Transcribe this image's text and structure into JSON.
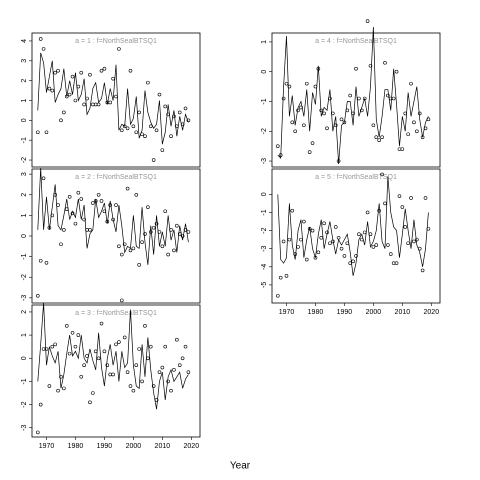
{
  "xlabel": "Year",
  "chart_data": [
    {
      "type": "line",
      "title": "a = 1 : f=NorthSealBTSQ1",
      "xlim": [
        1965,
        2023
      ],
      "ylim": [
        -2.35,
        4.4
      ],
      "yticks": [
        -2,
        -1,
        0,
        1,
        2,
        3,
        4
      ],
      "x": [
        1967,
        1968,
        1969,
        1970,
        1971,
        1972,
        1973,
        1974,
        1975,
        1976,
        1977,
        1978,
        1979,
        1980,
        1981,
        1982,
        1983,
        1984,
        1985,
        1986,
        1987,
        1988,
        1989,
        1990,
        1991,
        1992,
        1993,
        1994,
        1995,
        1996,
        1997,
        1998,
        1999,
        2000,
        2001,
        2002,
        2003,
        2004,
        2005,
        2006,
        2007,
        2008,
        2009,
        2010,
        2011,
        2012,
        2013,
        2014,
        2015,
        2016,
        2017,
        2018,
        2019
      ],
      "series": [
        {
          "style": "line",
          "color": "#000",
          "values": [
            0.5,
            3.4,
            2.9,
            1.4,
            2.2,
            3.0,
            0.9,
            1.3,
            1.6,
            2.6,
            1.2,
            2.0,
            1.3,
            2.4,
            1.0,
            1.3,
            2.1,
            0.3,
            0.6,
            1.6,
            1.9,
            0.9,
            1.1,
            1.9,
            0.8,
            1.6,
            1.0,
            2.8,
            -0.5,
            -0.2,
            -0.3,
            1.6,
            -0.2,
            0.1,
            1.2,
            -0.9,
            -0.5,
            1.5,
            0.4,
            -0.1,
            -0.4,
            -0.2,
            1.0,
            -1.2,
            -0.6,
            0.8,
            -0.3,
            0.5,
            -0.8,
            0.2,
            -0.5,
            0.3,
            -0.1
          ]
        },
        {
          "style": "points",
          "color": "#000",
          "values": [
            -0.6,
            4.1,
            3.6,
            -0.6,
            1.6,
            1.5,
            2.4,
            2.5,
            0.0,
            0.4,
            1.2,
            1.3,
            2.2,
            1.0,
            1.7,
            2.4,
            0.8,
            1.1,
            2.3,
            0.8,
            0.8,
            0.8,
            2.5,
            2.6,
            0.9,
            0.9,
            2.1,
            1.2,
            3.6,
            -0.5,
            -0.3,
            -0.4,
            2.5,
            -0.3,
            -0.6,
            0.4,
            -0.7,
            -0.8,
            1.9,
            -0.3,
            -2.0,
            -0.5,
            1.3,
            -1.5,
            0.7,
            0.3,
            -0.8,
            0.2,
            -0.3,
            0.4,
            -0.2,
            0.6,
            0.0
          ]
        }
      ]
    },
    {
      "type": "line",
      "title": "a = 2 : f=NorthSealBTSQ1",
      "xlim": [
        1965,
        2023
      ],
      "ylim": [
        -3.25,
        3.25
      ],
      "yticks": [
        -3,
        -2,
        -1,
        0,
        1,
        2,
        3
      ],
      "x": [
        1967,
        1968,
        1969,
        1970,
        1971,
        1972,
        1973,
        1974,
        1975,
        1976,
        1977,
        1978,
        1979,
        1980,
        1981,
        1982,
        1983,
        1984,
        1985,
        1986,
        1987,
        1988,
        1989,
        1990,
        1991,
        1992,
        1993,
        1994,
        1995,
        1996,
        1997,
        1998,
        1999,
        2000,
        2001,
        2002,
        2003,
        2004,
        2005,
        2006,
        2007,
        2008,
        2009,
        2010,
        2011,
        2012,
        2013,
        2014,
        2015,
        2016,
        2017,
        2018,
        2019
      ],
      "series": [
        {
          "style": "line",
          "color": "#000",
          "values": [
            0.3,
            3.3,
            0.3,
            1.9,
            0.3,
            1.4,
            2.5,
            0.5,
            0.3,
            1.0,
            1.8,
            0.8,
            1.2,
            0.9,
            1.8,
            0.8,
            1.5,
            -0.6,
            0.1,
            0.3,
            1.8,
            0.9,
            1.2,
            1.6,
            0.6,
            1.7,
            0.8,
            0.2,
            1.5,
            0.5,
            -0.8,
            -0.5,
            -0.6,
            1.0,
            -0.5,
            -0.6,
            1.4,
            -0.3,
            -1.4,
            0.5,
            -0.9,
            1.0,
            -0.5,
            0.2,
            -0.5,
            1.0,
            -0.2,
            0.3,
            -0.8,
            0.5,
            -0.2,
            0.6,
            -0.3
          ]
        },
        {
          "style": "points",
          "color": "#000",
          "values": [
            -2.9,
            -1.2,
            2.8,
            -1.3,
            0.4,
            1.0,
            2.0,
            1.5,
            -0.4,
            0.3,
            1.3,
            1.9,
            1.1,
            0.6,
            2.1,
            1.8,
            0.8,
            0.3,
            0.3,
            1.6,
            1.7,
            2.0,
            1.7,
            1.2,
            0.7,
            1.5,
            0.8,
            1.5,
            -0.5,
            -0.9,
            -0.4,
            2.3,
            -0.7,
            -0.6,
            2.0,
            -1.4,
            -0.3,
            0.1,
            1.4,
            0.2,
            0.4,
            0.6,
            0.2,
            -0.5,
            1.2,
            -0.9,
            0.3,
            -0.7,
            0.5,
            0.1,
            0.0,
            0.3,
            0.2
          ]
        }
      ]
    },
    {
      "type": "line",
      "title": "a = 3 : f=NorthSealBTSQ1",
      "xlim": [
        1965,
        2023
      ],
      "ylim": [
        -3.4,
        2.3
      ],
      "yticks": [
        -3,
        -2,
        -1,
        0,
        1,
        2
      ],
      "xticks": [
        1970,
        1980,
        1990,
        2000,
        2010,
        2020
      ],
      "x": [
        1967,
        1968,
        1969,
        1970,
        1971,
        1972,
        1973,
        1974,
        1975,
        1976,
        1977,
        1978,
        1979,
        1980,
        1981,
        1982,
        1983,
        1984,
        1985,
        1986,
        1987,
        1988,
        1989,
        1990,
        1991,
        1992,
        1993,
        1994,
        1995,
        1996,
        1997,
        1998,
        1999,
        2000,
        2001,
        2002,
        2003,
        2004,
        2005,
        2006,
        2007,
        2008,
        2009,
        2010,
        2011,
        2012,
        2013,
        2014,
        2015,
        2016,
        2017,
        2018,
        2019
      ],
      "series": [
        {
          "style": "line",
          "color": "#000",
          "values": [
            -1.0,
            0.6,
            2.4,
            -0.3,
            0.5,
            0.1,
            -0.2,
            0.3,
            -1.3,
            -0.7,
            0.2,
            1.0,
            0.1,
            0.3,
            0.0,
            1.0,
            0.0,
            -0.2,
            0.4,
            -0.1,
            -0.5,
            1.1,
            -0.4,
            -1.2,
            0.0,
            0.6,
            -0.3,
            0.3,
            -1.0,
            0.3,
            -0.4,
            -0.2,
            2.1,
            -0.3,
            -1.2,
            -1.3,
            0.6,
            -0.8,
            0.9,
            -0.5,
            -1.5,
            -2.2,
            -1.0,
            -0.6,
            -1.8,
            -0.8,
            -0.5,
            -1.0,
            -0.8,
            -0.6,
            -1.3,
            -0.9,
            -0.7
          ]
        },
        {
          "style": "points",
          "color": "#000",
          "values": [
            -3.2,
            -2.0,
            0.4,
            0.4,
            -1.2,
            0.5,
            0.6,
            -1.4,
            -0.8,
            -1.3,
            1.4,
            0.2,
            1.1,
            0.5,
            1.0,
            -0.8,
            -0.3,
            0.1,
            -1.9,
            -1.5,
            0.3,
            0.0,
            1.5,
            0.3,
            -0.3,
            -0.7,
            -0.7,
            0.6,
            0.7,
            2.5,
            0.9,
            -0.6,
            -1.2,
            -1.4,
            -0.3,
            0.4,
            -1.0,
            1.4,
            0.0,
            0.5,
            -1.2,
            -1.8,
            -0.6,
            -0.4,
            0.5,
            -1.0,
            -1.4,
            -0.5,
            0.8,
            -0.3,
            0.0,
            0.5,
            -0.6
          ]
        }
      ]
    },
    {
      "type": "line",
      "title": "a = 4 : f=NorthSealBTSQ1",
      "xlim": [
        1965,
        2023
      ],
      "ylim": [
        -3.2,
        1.3
      ],
      "yticks": [
        -3,
        -2,
        -1,
        0,
        1
      ],
      "x": [
        1967,
        1968,
        1969,
        1970,
        1971,
        1972,
        1973,
        1974,
        1975,
        1976,
        1977,
        1978,
        1979,
        1980,
        1981,
        1982,
        1983,
        1984,
        1985,
        1986,
        1987,
        1988,
        1989,
        1990,
        1991,
        1992,
        1993,
        1994,
        1995,
        1996,
        1997,
        1998,
        1999,
        2000,
        2001,
        2002,
        2003,
        2004,
        2005,
        2006,
        2007,
        2008,
        2009,
        2010,
        2011,
        2012,
        2013,
        2014,
        2015,
        2016,
        2017,
        2018,
        2019
      ],
      "series": [
        {
          "style": "line",
          "color": "#000",
          "values": [
            -2.8,
            -2.9,
            -0.5,
            1.2,
            -1.5,
            -0.8,
            -1.8,
            -1.2,
            -1.0,
            -1.5,
            -0.6,
            -2.0,
            -0.7,
            -1.1,
            0.2,
            -1.5,
            -1.2,
            -1.3,
            -0.6,
            -2.0,
            -1.5,
            -3.1,
            -1.8,
            -1.7,
            -1.0,
            -1.0,
            -1.8,
            -0.5,
            -1.5,
            -1.2,
            -0.9,
            -1.5,
            -0.5,
            1.5,
            -1.6,
            -2.2,
            -1.5,
            -0.6,
            -0.6,
            -1.3,
            0.1,
            -1.1,
            -2.5,
            -1.5,
            -2.0,
            -0.7,
            -1.5,
            -1.0,
            -0.5,
            -1.6,
            -2.2,
            -1.7,
            -1.5
          ]
        },
        {
          "style": "points",
          "color": "#000",
          "values": [
            -2.5,
            -2.8,
            -0.9,
            -0.4,
            -0.5,
            -1.7,
            -2.0,
            -1.3,
            -1.2,
            -1.8,
            -0.4,
            -2.7,
            -2.4,
            -0.5,
            0.1,
            -1.3,
            -1.4,
            -1.9,
            -0.9,
            -1.4,
            -1.8,
            -3.0,
            -1.6,
            -1.7,
            -1.3,
            -0.8,
            -1.4,
            0.1,
            -0.9,
            -1.3,
            -0.9,
            1.7,
            0.2,
            -1.8,
            -2.2,
            -2.3,
            -2.2,
            0.3,
            -0.8,
            -0.9,
            -0.9,
            0.0,
            -2.6,
            -2.6,
            -1.4,
            -2.1,
            -0.4,
            -1.7,
            -2.0,
            -1.4,
            -2.2,
            -1.9,
            -1.6
          ]
        }
      ]
    },
    {
      "type": "line",
      "title": "a = 5 : f=NorthSealBTSQ1",
      "xlim": [
        1965,
        2023
      ],
      "ylim": [
        -6,
        1.4
      ],
      "yticks": [
        -5,
        -4,
        -3,
        -2,
        -1,
        0
      ],
      "xticks": [
        1970,
        1980,
        1990,
        2000,
        2010,
        2020
      ],
      "x": [
        1967,
        1968,
        1969,
        1970,
        1971,
        1972,
        1973,
        1974,
        1975,
        1976,
        1977,
        1978,
        1979,
        1980,
        1981,
        1982,
        1983,
        1984,
        1985,
        1986,
        1987,
        1988,
        1989,
        1990,
        1991,
        1992,
        1993,
        1994,
        1995,
        1996,
        1997,
        1998,
        1999,
        2000,
        2001,
        2002,
        2003,
        2004,
        2005,
        2006,
        2007,
        2008,
        2009,
        2010,
        2011,
        2012,
        2013,
        2014,
        2015,
        2016,
        2017,
        2018,
        2019
      ],
      "series": [
        {
          "style": "line",
          "color": "#000",
          "values": [
            0.0,
            -3.6,
            -3.8,
            -3.5,
            -0.5,
            -2.8,
            -3.6,
            -2.0,
            -1.4,
            -3.5,
            -2.5,
            -1.8,
            -3.0,
            -3.5,
            -2.2,
            -1.4,
            -3.0,
            -2.2,
            -1.5,
            -2.5,
            -3.3,
            -2.5,
            -2.8,
            -2.5,
            -2.2,
            -3.2,
            -4.5,
            -3.8,
            -2.5,
            -2.2,
            -2.8,
            -1.5,
            -2.9,
            -2.6,
            -2.0,
            -0.5,
            -2.6,
            -3.0,
            1.0,
            -1.0,
            -1.8,
            -2.0,
            -3.5,
            -2.2,
            -0.8,
            -2.0,
            -3.0,
            -1.4,
            -2.8,
            -3.2,
            -4.0,
            -3.0,
            -1.0
          ]
        },
        {
          "style": "points",
          "color": "#000",
          "values": [
            -5.6,
            -4.6,
            -2.6,
            -4.5,
            -2.5,
            -0.9,
            -3.3,
            -2.9,
            -2.5,
            -1.5,
            -3.6,
            -1.9,
            -2.0,
            -3.5,
            -3.2,
            -2.4,
            -1.6,
            -2.1,
            -2.7,
            -2.6,
            -1.8,
            -2.4,
            -3.0,
            -3.4,
            -2.7,
            -3.8,
            -3.7,
            -3.4,
            -2.2,
            -2.5,
            -2.1,
            -1.0,
            -2.2,
            -2.9,
            -2.8,
            -0.9,
            1.1,
            -0.5,
            -2.8,
            -3.3,
            -3.8,
            -3.8,
            -0.1,
            -0.7,
            -1.8,
            -2.7,
            -0.2,
            -2.6,
            -2.5,
            -3.0,
            -4.2,
            -0.2,
            -1.9
          ]
        }
      ]
    }
  ]
}
